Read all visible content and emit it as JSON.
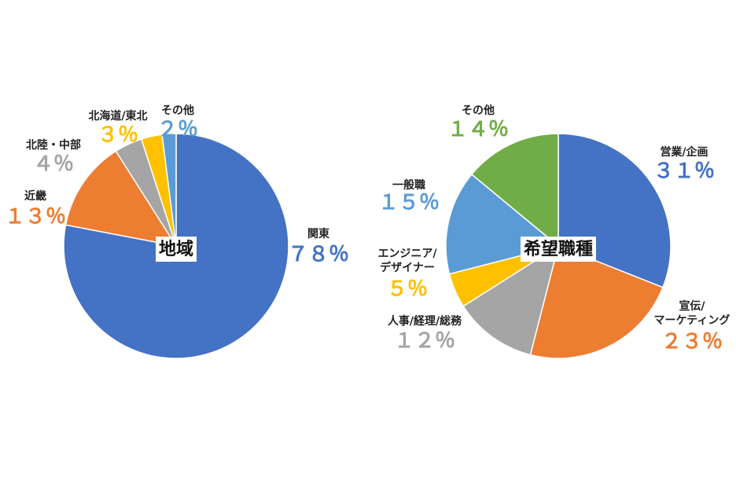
{
  "chart_data": [
    {
      "type": "pie",
      "title": "地域",
      "slices": [
        {
          "label": "関東",
          "pct_text": "７８％",
          "value": 78,
          "color": "#4472C4"
        },
        {
          "label": "近畿",
          "pct_text": "１３％",
          "value": 13,
          "color": "#ED7D31"
        },
        {
          "label": "北陸・中部",
          "pct_text": "４％",
          "value": 4,
          "color": "#A5A5A5"
        },
        {
          "label": "北海道/東北",
          "pct_text": "３％",
          "value": 3,
          "color": "#FFC000"
        },
        {
          "label": "その他",
          "pct_text": "２％",
          "value": 2,
          "color": "#5B9BD5"
        }
      ]
    },
    {
      "type": "pie",
      "title": "希望職種",
      "slices": [
        {
          "label": "営業/企画",
          "pct_text": "３１％",
          "value": 31,
          "color": "#4472C4"
        },
        {
          "label": "宣伝/\nマーケティング",
          "pct_text": "２３％",
          "value": 23,
          "color": "#ED7D31"
        },
        {
          "label": "人事/経理/総務",
          "pct_text": "１２％",
          "value": 12,
          "color": "#A5A5A5"
        },
        {
          "label": "エンジニア/\nデザイナー",
          "pct_text": "５％",
          "value": 5,
          "color": "#FFC000"
        },
        {
          "label": "一般職",
          "pct_text": "１５％",
          "value": 15,
          "color": "#5B9BD5"
        },
        {
          "label": "その他",
          "pct_text": "１４％",
          "value": 14,
          "color": "#70AD47"
        }
      ]
    }
  ]
}
